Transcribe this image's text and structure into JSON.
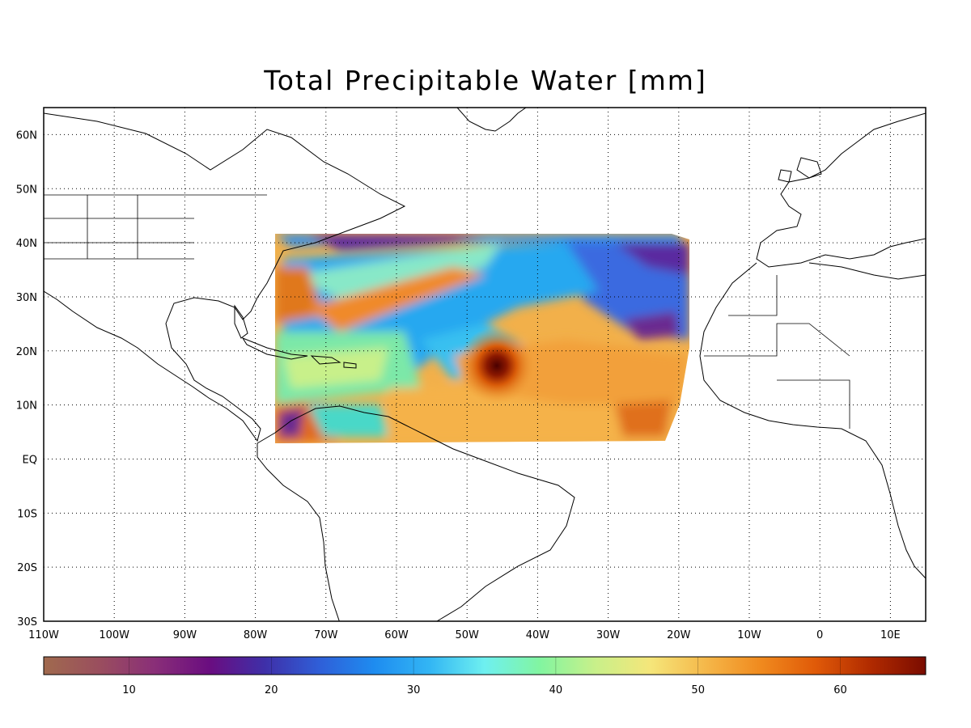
{
  "title": "Total Precipitable Water [mm]",
  "map": {
    "lon_range": [
      -110,
      15
    ],
    "lat_range": [
      -30,
      65
    ],
    "lon_labels": [
      {
        "lon": -110,
        "label": "110W"
      },
      {
        "lon": -100,
        "label": "100W"
      },
      {
        "lon": -90,
        "label": "90W"
      },
      {
        "lon": -80,
        "label": "80W"
      },
      {
        "lon": -70,
        "label": "70W"
      },
      {
        "lon": -60,
        "label": "60W"
      },
      {
        "lon": -50,
        "label": "50W"
      },
      {
        "lon": -40,
        "label": "40W"
      },
      {
        "lon": -30,
        "label": "30W"
      },
      {
        "lon": -20,
        "label": "20W"
      },
      {
        "lon": -10,
        "label": "10W"
      },
      {
        "lon": 0,
        "label": "0"
      },
      {
        "lon": 10,
        "label": "10E"
      }
    ],
    "lat_labels": [
      {
        "lat": 60,
        "label": "60N"
      },
      {
        "lat": 50,
        "label": "50N"
      },
      {
        "lat": 40,
        "label": "40N"
      },
      {
        "lat": 30,
        "label": "30N"
      },
      {
        "lat": 20,
        "label": "20N"
      },
      {
        "lat": 10,
        "label": "10N"
      },
      {
        "lat": 0,
        "label": "EQ"
      },
      {
        "lat": -10,
        "label": "10S"
      },
      {
        "lat": -20,
        "label": "20S"
      },
      {
        "lat": -30,
        "label": "30S"
      }
    ],
    "grid": "dotted",
    "data_region": {
      "lon_range": [
        -77,
        -18
      ],
      "lat_range": [
        3,
        42
      ]
    },
    "cyclone_center": {
      "lon": -45,
      "lat": 17
    }
  },
  "colorbar": {
    "range": [
      4,
      66
    ],
    "ticks": [
      10,
      20,
      30,
      40,
      50,
      60
    ],
    "stops": [
      "#a06a4e",
      "#9a4e5e",
      "#8a2f78",
      "#6a0d80",
      "#3f2fa8",
      "#2f5fd8",
      "#1e8cf0",
      "#33b6f4",
      "#6ef0f0",
      "#82f5a0",
      "#c8f08a",
      "#f5e67a",
      "#f5b84a",
      "#f08a1e",
      "#e05a08",
      "#b02a00",
      "#7a0c00"
    ]
  }
}
